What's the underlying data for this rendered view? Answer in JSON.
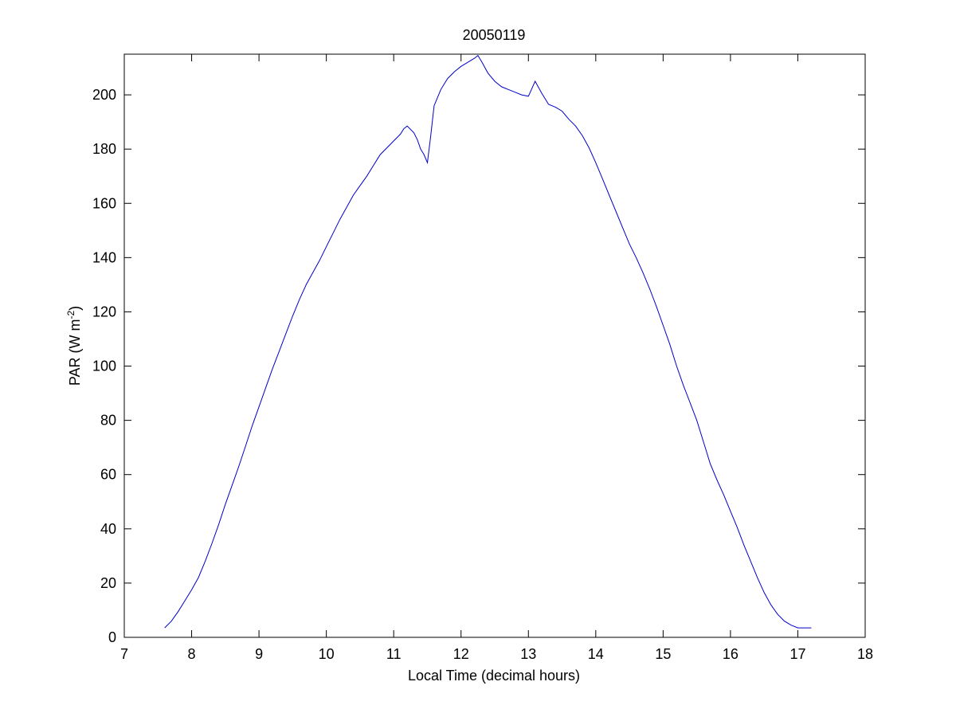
{
  "chart_data": {
    "type": "line",
    "title": "20050119",
    "xlabel": "Local Time (decimal hours)",
    "ylabel_main": "PAR (W m",
    "ylabel_sup": "-2",
    "ylabel_close": ")",
    "xlim": [
      7,
      18
    ],
    "ylim": [
      0,
      215
    ],
    "xticks": [
      7,
      8,
      9,
      10,
      11,
      12,
      13,
      14,
      15,
      16,
      17,
      18
    ],
    "yticks": [
      0,
      20,
      40,
      60,
      80,
      100,
      120,
      140,
      160,
      180,
      200
    ],
    "grid": false,
    "line_color": "#0000cc",
    "series": [
      {
        "x": [
          7.6,
          7.7,
          7.8,
          7.9,
          8.0,
          8.1,
          8.2,
          8.3,
          8.4,
          8.5,
          8.6,
          8.7,
          8.8,
          8.9,
          9.0,
          9.1,
          9.2,
          9.3,
          9.4,
          9.5,
          9.6,
          9.7,
          9.8,
          9.9,
          10.0,
          10.1,
          10.2,
          10.3,
          10.4,
          10.5,
          10.6,
          10.7,
          10.75,
          10.8,
          10.9,
          11.0,
          11.1,
          11.15,
          11.2,
          11.3,
          11.35,
          11.4,
          11.45,
          11.5,
          11.55,
          11.6,
          11.7,
          11.8,
          11.9,
          12.0,
          12.1,
          12.2,
          12.25,
          12.3,
          12.4,
          12.5,
          12.6,
          12.7,
          12.8,
          12.9,
          13.0,
          13.1,
          13.2,
          13.3,
          13.4,
          13.5,
          13.6,
          13.7,
          13.8,
          13.9,
          14.0,
          14.1,
          14.2,
          14.3,
          14.4,
          14.5,
          14.6,
          14.7,
          14.8,
          14.9,
          15.0,
          15.1,
          15.2,
          15.3,
          15.4,
          15.5,
          15.6,
          15.7,
          15.8,
          15.9,
          16.0,
          16.1,
          16.2,
          16.3,
          16.4,
          16.5,
          16.6,
          16.7,
          16.8,
          16.9,
          17.0,
          17.1,
          17.2
        ],
        "y": [
          3.5,
          6,
          9.5,
          13.5,
          17.5,
          22,
          28,
          34.5,
          41.5,
          49,
          56,
          63,
          70.5,
          78,
          85,
          92,
          99,
          105.5,
          112,
          118.5,
          124.5,
          130,
          134.5,
          139,
          144,
          149,
          154,
          158.5,
          163,
          166.5,
          170,
          174,
          176,
          178,
          180.5,
          183,
          185.5,
          187.5,
          188.5,
          186,
          183.5,
          180,
          178,
          175,
          185,
          196,
          202,
          206,
          208.5,
          210.5,
          212,
          213.5,
          214.5,
          212.5,
          208,
          205,
          203,
          202,
          201,
          200,
          199.5,
          205,
          200.5,
          196.5,
          195.5,
          194,
          191,
          188.5,
          185,
          180.5,
          175,
          169,
          163,
          157,
          151,
          145,
          140,
          134.5,
          128.5,
          122,
          115,
          108,
          100,
          93,
          86.5,
          80,
          72,
          64,
          58,
          52.5,
          46.5,
          40.5,
          34,
          28,
          22,
          16.5,
          12,
          8.5,
          6,
          4.5,
          3.5,
          3.5,
          3.5
        ]
      }
    ]
  }
}
